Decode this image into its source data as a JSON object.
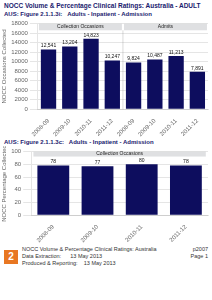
{
  "chart_data": [
    {
      "type": "bar",
      "title": "NOCC Volume & Percentage Clinical Ratings: Australia - ADULT",
      "subtitle": "AUS: Figure 2.1.1.3i:   Adults - Inpatient - Admission",
      "categories": [
        "2008-09",
        "2009-10",
        "2010-11",
        "2011-12",
        "2008-09",
        "2009-10",
        "2010-11",
        "2011-12"
      ],
      "values": [
        12541,
        13204,
        14823,
        10247,
        9824,
        10487,
        11213,
        7891
      ],
      "value_labels": [
        "12,541",
        "13,204",
        "14,823",
        "10,247",
        "9,824",
        "10,487",
        "11,213",
        "7,891"
      ],
      "data_labels": true,
      "color": "#0d0d5e",
      "ylabel": "NOCC Occasions Collected",
      "ylim": [
        0,
        18000
      ],
      "yticks": [
        0,
        2000,
        4000,
        6000,
        8000,
        10000,
        12000,
        14000,
        16000,
        18000
      ],
      "grid": true,
      "annotations": [
        "Collection Occasions",
        "Admits"
      ]
    },
    {
      "type": "bar",
      "title": "AUS: Figure 2.1.1.3c:   Adults - Inpatient - Admission",
      "categories": [
        "2008-09",
        "2009-10",
        "2010-11",
        "2011-12"
      ],
      "values": [
        78,
        77,
        80,
        78
      ],
      "data_labels": true,
      "color": "#0d0d5e",
      "ylabel": "NOCC Percentage Collected",
      "ylim": [
        0,
        100
      ],
      "yticks": [
        0,
        20,
        40,
        60,
        80,
        100
      ],
      "grid": true,
      "annotations": [
        "Collection Occasions"
      ],
      "footer": [
        "2",
        "NOCC Volume & Percentage Clinical Ratings: Australia",
        "Data Extraction:      13 May 2013",
        "Produced & Reporting:    13 May 2013",
        "p2007\nPage 1"
      ]
    }
  ]
}
